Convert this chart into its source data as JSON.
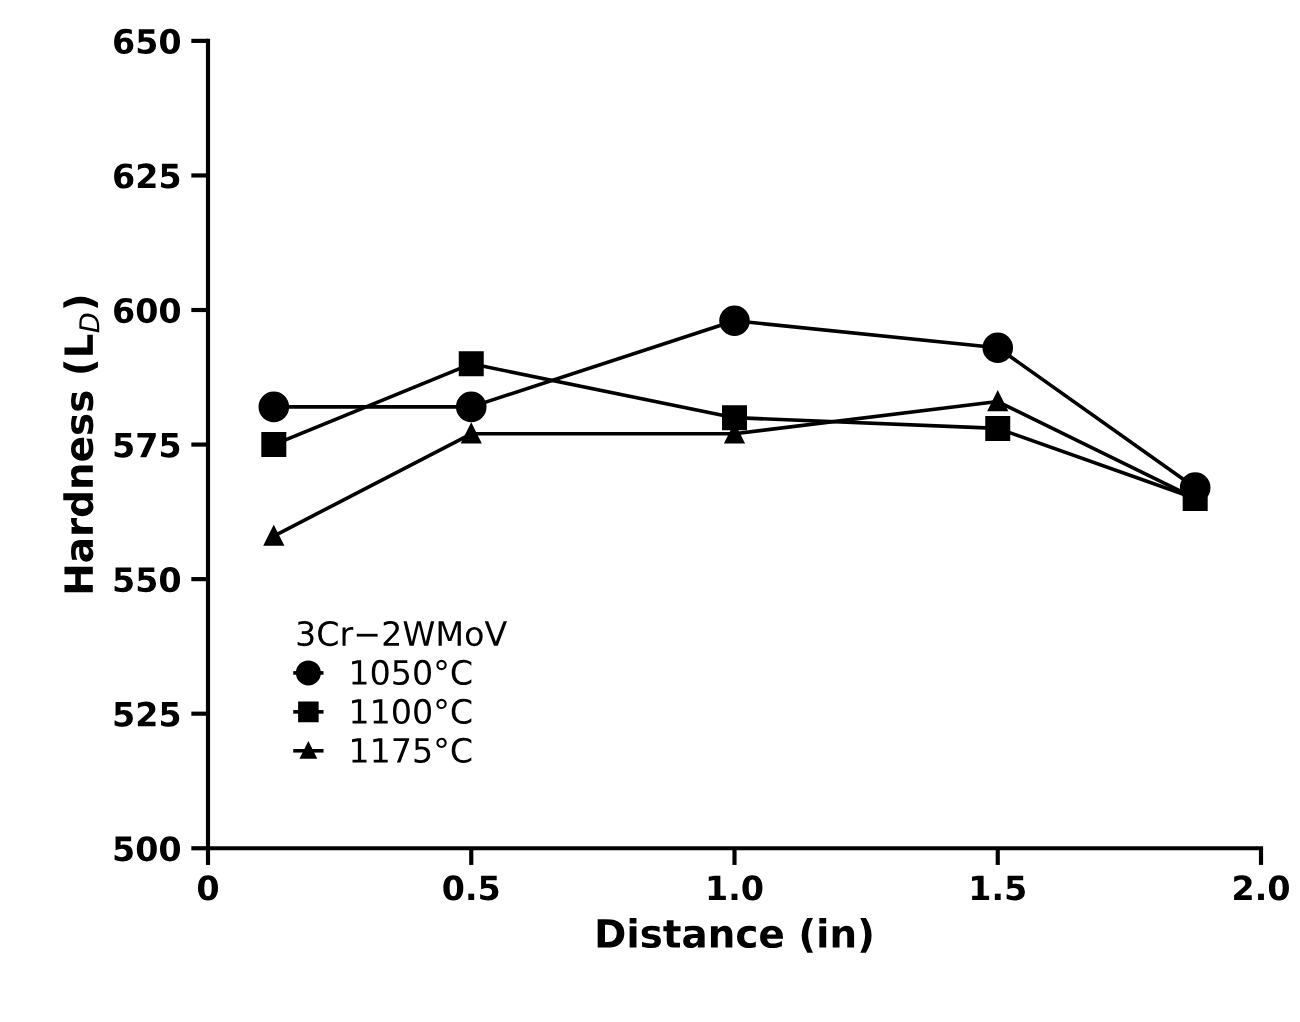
{
  "chart_data": {
    "type": "line",
    "xlabel": "Distance (in)",
    "ylabel": "Hardness (L$_{D}$)",
    "legend_title": "3Cr−2WMoV",
    "legend": "center left",
    "x": [
      0.125,
      0.5,
      1.0,
      1.5,
      1.875
    ],
    "series": [
      {
        "name": "1050°C",
        "color": "#000000",
        "marker": "circle",
        "values": [
          582,
          582,
          598,
          593,
          567
        ]
      },
      {
        "name": "1100°C",
        "color": "#000000",
        "marker": "square",
        "values": [
          575,
          590,
          580,
          578,
          565
        ]
      },
      {
        "name": "1175°C",
        "color": "#000000",
        "marker": "triangle",
        "values": [
          558,
          577,
          577,
          583,
          565
        ]
      }
    ],
    "xlim": [
      0,
      2.0
    ],
    "xticks": [
      0,
      {
        "value": 0.5,
        "label": "0.5"
      },
      {
        "value": 1.0,
        "label": "1.0"
      },
      {
        "value": 1.5,
        "label": "1.5"
      },
      {
        "value": 2.0,
        "label": "2.0"
      }
    ],
    "ylim": [
      500,
      650
    ],
    "yticks": [
      500,
      525,
      550,
      575,
      600,
      625,
      650
    ],
    "grid": false,
    "line_style": "solid"
  }
}
